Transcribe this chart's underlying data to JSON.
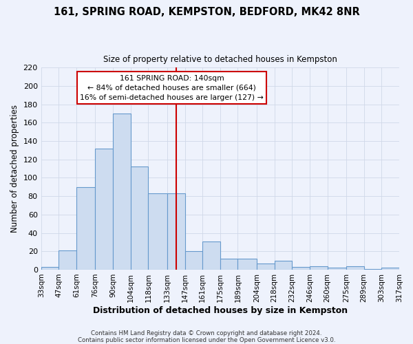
{
  "title": "161, SPRING ROAD, KEMPSTON, BEDFORD, MK42 8NR",
  "subtitle": "Size of property relative to detached houses in Kempston",
  "xlabel": "Distribution of detached houses by size in Kempston",
  "ylabel": "Number of detached properties",
  "bar_color": "#cddcf0",
  "bar_edge_color": "#6699cc",
  "background_color": "#eef2fc",
  "grid_color": "#d0d8e8",
  "bin_edges": [
    33,
    47,
    61,
    76,
    90,
    104,
    118,
    133,
    147,
    161,
    175,
    189,
    204,
    218,
    232,
    246,
    260,
    275,
    289,
    303,
    317
  ],
  "bin_labels": [
    "33sqm",
    "47sqm",
    "61sqm",
    "76sqm",
    "90sqm",
    "104sqm",
    "118sqm",
    "133sqm",
    "147sqm",
    "161sqm",
    "175sqm",
    "189sqm",
    "204sqm",
    "218sqm",
    "232sqm",
    "246sqm",
    "260sqm",
    "275sqm",
    "289sqm",
    "303sqm",
    "317sqm"
  ],
  "counts": [
    3,
    21,
    90,
    132,
    170,
    112,
    83,
    83,
    20,
    31,
    12,
    12,
    7,
    10,
    3,
    4,
    2,
    4,
    1,
    2
  ],
  "vline_x": 140,
  "vline_color": "#cc0000",
  "ylim": [
    0,
    220
  ],
  "yticks": [
    0,
    20,
    40,
    60,
    80,
    100,
    120,
    140,
    160,
    180,
    200,
    220
  ],
  "ann_line1": "161 SPRING ROAD: 140sqm",
  "ann_line2": "← 84% of detached houses are smaller (664)",
  "ann_line3": "16% of semi-detached houses are larger (127) →",
  "annotation_box_color": "#ffffff",
  "annotation_box_edge": "#cc0000",
  "footer1": "Contains HM Land Registry data © Crown copyright and database right 2024.",
  "footer2": "Contains public sector information licensed under the Open Government Licence v3.0."
}
